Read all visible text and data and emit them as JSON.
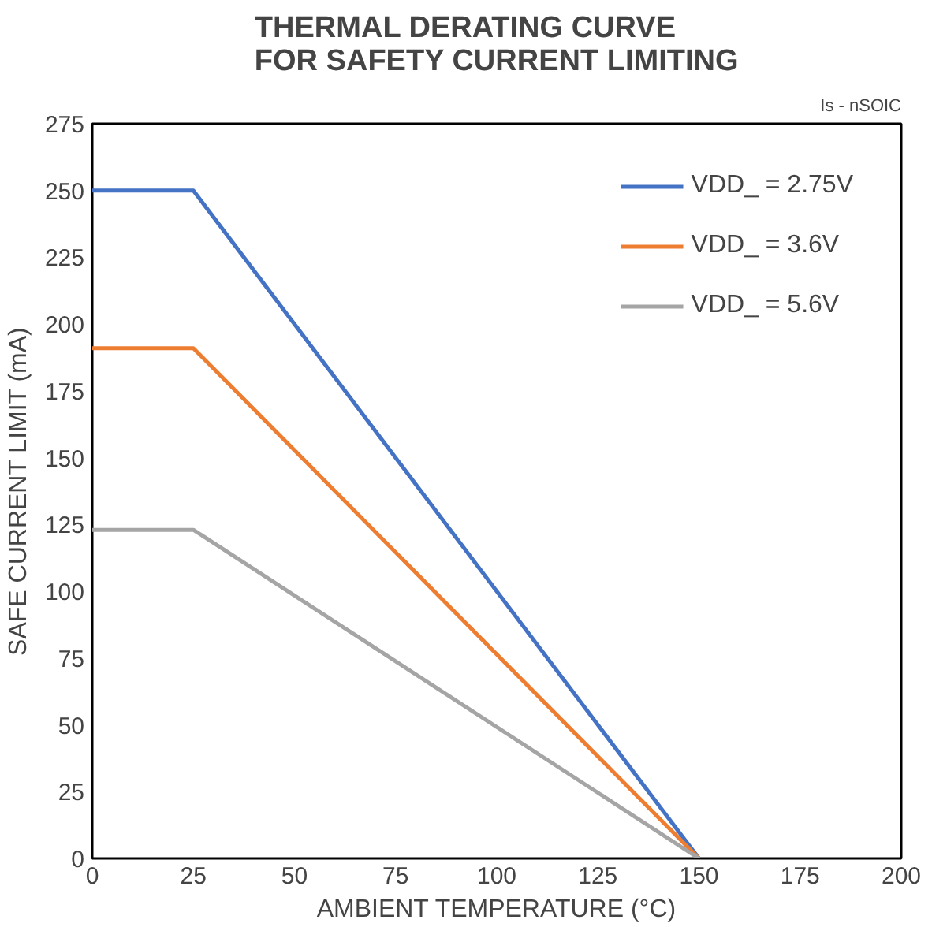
{
  "chart_data": {
    "type": "line",
    "title": "THERMAL DERATING CURVE\nFOR SAFETY CURRENT LIMITING",
    "xlabel": "AMBIENT TEMPERATURE (°C)",
    "ylabel": "SAFE CURRENT LIMIT (mA)",
    "annotations": [
      "Is - nSOIC"
    ],
    "x": [
      0,
      25,
      150
    ],
    "series": [
      {
        "name": "VDD_ = 2.75V",
        "color": "#4472c4",
        "values": [
          250,
          250,
          0
        ]
      },
      {
        "name": "VDD_ = 3.6V",
        "color": "#ed7d31",
        "values": [
          191,
          191,
          0
        ]
      },
      {
        "name": "VDD_ = 5.6V",
        "color": "#a5a5a5",
        "values": [
          123,
          123,
          0
        ]
      }
    ],
    "xlim": [
      0,
      200
    ],
    "ylim": [
      0,
      275
    ],
    "xticks": [
      0,
      25,
      50,
      75,
      100,
      125,
      150,
      175,
      200
    ],
    "yticks": [
      0,
      25,
      50,
      75,
      100,
      125,
      150,
      175,
      200,
      225,
      250,
      275
    ],
    "grid": false,
    "legend": "top right",
    "marker": "none",
    "line_style": "solid"
  }
}
